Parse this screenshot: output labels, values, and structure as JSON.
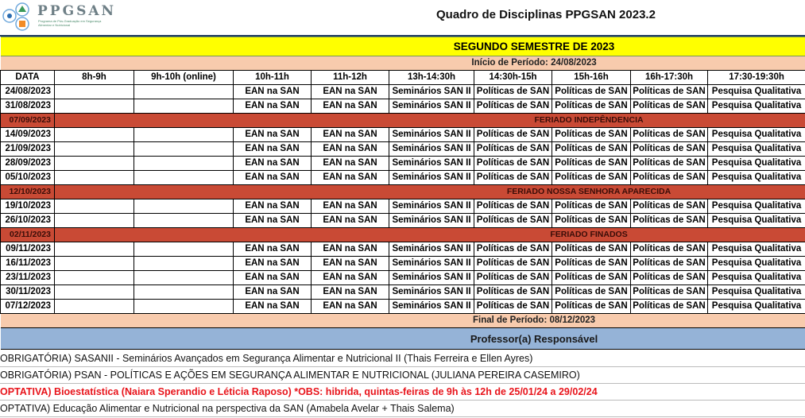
{
  "header": {
    "logo_text": "PPGSAN",
    "logo_subtitle": "Programa de Pós-Graduação em Segurança Alimentar e Nutricional",
    "title": "Quadro de Disciplinas PPGSAN 2023.2"
  },
  "semester_title": "SEGUNDO SEMESTRE DE 2023",
  "period_start": "Início de Período: 24/08/2023",
  "period_end": "Final de Período: 08/12/2023",
  "columns": [
    "DATA",
    "8h-9h",
    "9h-10h (online)",
    "10h-11h",
    "11h-12h",
    "13h-14:30h",
    "14:30h-15h",
    "15h-16h",
    "16h-17:30h",
    "17:30-19:30h"
  ],
  "rows": [
    {
      "date": "24/08/2023",
      "cells": [
        "",
        "",
        "EAN na SAN",
        "EAN na SAN",
        "Seminários SAN II",
        "Políticas de SAN",
        "Políticas de SAN",
        "Políticas de SAN",
        "Pesquisa Qualitativa"
      ]
    },
    {
      "date": "31/08/2023",
      "cells": [
        "",
        "",
        "EAN na SAN",
        "EAN na SAN",
        "Seminários SAN II",
        "Políticas de SAN",
        "Políticas de SAN",
        "Políticas de SAN",
        "Pesquisa Qualitativa"
      ]
    },
    {
      "date": "07/09/2023",
      "holiday": "FERIADO INDEPÊNDENCIA"
    },
    {
      "date": "14/09/2023",
      "cells": [
        "",
        "",
        "EAN na SAN",
        "EAN na SAN",
        "Seminários SAN II",
        "Políticas de SAN",
        "Políticas de SAN",
        "Políticas de SAN",
        "Pesquisa Qualitativa"
      ]
    },
    {
      "date": "21/09/2023",
      "cells": [
        "",
        "",
        "EAN na SAN",
        "EAN na SAN",
        "Seminários SAN II",
        "Políticas de SAN",
        "Políticas de SAN",
        "Políticas de SAN",
        "Pesquisa Qualitativa"
      ]
    },
    {
      "date": "28/09/2023",
      "cells": [
        "",
        "",
        "EAN na SAN",
        "EAN na SAN",
        "Seminários SAN II",
        "Políticas de SAN",
        "Políticas de SAN",
        "Políticas de SAN",
        "Pesquisa Qualitativa"
      ]
    },
    {
      "date": "05/10/2023",
      "cells": [
        "",
        "",
        "EAN na SAN",
        "EAN na SAN",
        "Seminários SAN II",
        "Políticas de SAN",
        "Políticas de SAN",
        "Políticas de SAN",
        "Pesquisa Qualitativa"
      ]
    },
    {
      "date": "12/10/2023",
      "holiday": "FERIADO NOSSA SENHORA APARECIDA"
    },
    {
      "date": "19/10/2023",
      "cells": [
        "",
        "",
        "EAN na SAN",
        "EAN na SAN",
        "Seminários SAN II",
        "Políticas de SAN",
        "Políticas de SAN",
        "Políticas de SAN",
        "Pesquisa Qualitativa"
      ]
    },
    {
      "date": "26/10/2023",
      "cells": [
        "",
        "",
        "EAN na SAN",
        "EAN na SAN",
        "Seminários SAN II",
        "Políticas de SAN",
        "Políticas de SAN",
        "Políticas de SAN",
        "Pesquisa Qualitativa"
      ]
    },
    {
      "date": "02/11/2023",
      "holiday": "FERIADO FINADOS"
    },
    {
      "date": "09/11/2023",
      "cells": [
        "",
        "",
        "EAN na SAN",
        "EAN na SAN",
        "Seminários SAN II",
        "Políticas de SAN",
        "Políticas de SAN",
        "Políticas de SAN",
        "Pesquisa Qualitativa"
      ]
    },
    {
      "date": "16/11/2023",
      "cells": [
        "",
        "",
        "EAN na SAN",
        "EAN na SAN",
        "Seminários SAN II",
        "Políticas de SAN",
        "Políticas de SAN",
        "Políticas de SAN",
        "Pesquisa Qualitativa"
      ]
    },
    {
      "date": "23/11/2023",
      "cells": [
        "",
        "",
        "EAN na SAN",
        "EAN na SAN",
        "Seminários SAN II",
        "Políticas de SAN",
        "Políticas de SAN",
        "Políticas de SAN",
        "Pesquisa Qualitativa"
      ]
    },
    {
      "date": "30/11/2023",
      "cells": [
        "",
        "",
        "EAN na SAN",
        "EAN na SAN",
        "Seminários SAN II",
        "Políticas de SAN",
        "Políticas de SAN",
        "Políticas de SAN",
        "Pesquisa Qualitativa"
      ]
    },
    {
      "date": "07/12/2023",
      "cells": [
        "",
        "",
        "EAN na SAN",
        "EAN na SAN",
        "Seminários SAN II",
        "Políticas de SAN",
        "Políticas de SAN",
        "Políticas de SAN",
        "Pesquisa Qualitativa"
      ]
    }
  ],
  "professor_header": "Professor(a) Responsável",
  "notes": [
    {
      "text": "OBRIGATÓRIA) SASANII - Seminários Avançados em Segurança Alimentar e Nutricional II (Thais Ferreira e Ellen Ayres)",
      "highlight": false
    },
    {
      "text": "OBRIGATÓRIA) PSAN - POLÍTICAS E AÇÕES EM SEGURANÇA ALIMENTAR E NUTRICIONAL (JULIANA PEREIRA CASEMIRO)",
      "highlight": false
    },
    {
      "text": "OPTATIVA) Bioestatística (Naiara Sperandio e Léticia Raposo) *OBS: hibrida, quintas-feiras de 9h às 12h de 25/01/24 a 29/02/24",
      "highlight": true
    },
    {
      "text": "OPTATIVA) Educação Alimentar e Nutricional na perspectiva da SAN (Amabela Avelar + Thais Salema)",
      "highlight": false
    }
  ],
  "colors": {
    "semester": "#ffff00",
    "period": "#f8cbad",
    "holiday": "#c94a35",
    "professor": "#95b3d7",
    "highlight_text": "#e8141b"
  }
}
